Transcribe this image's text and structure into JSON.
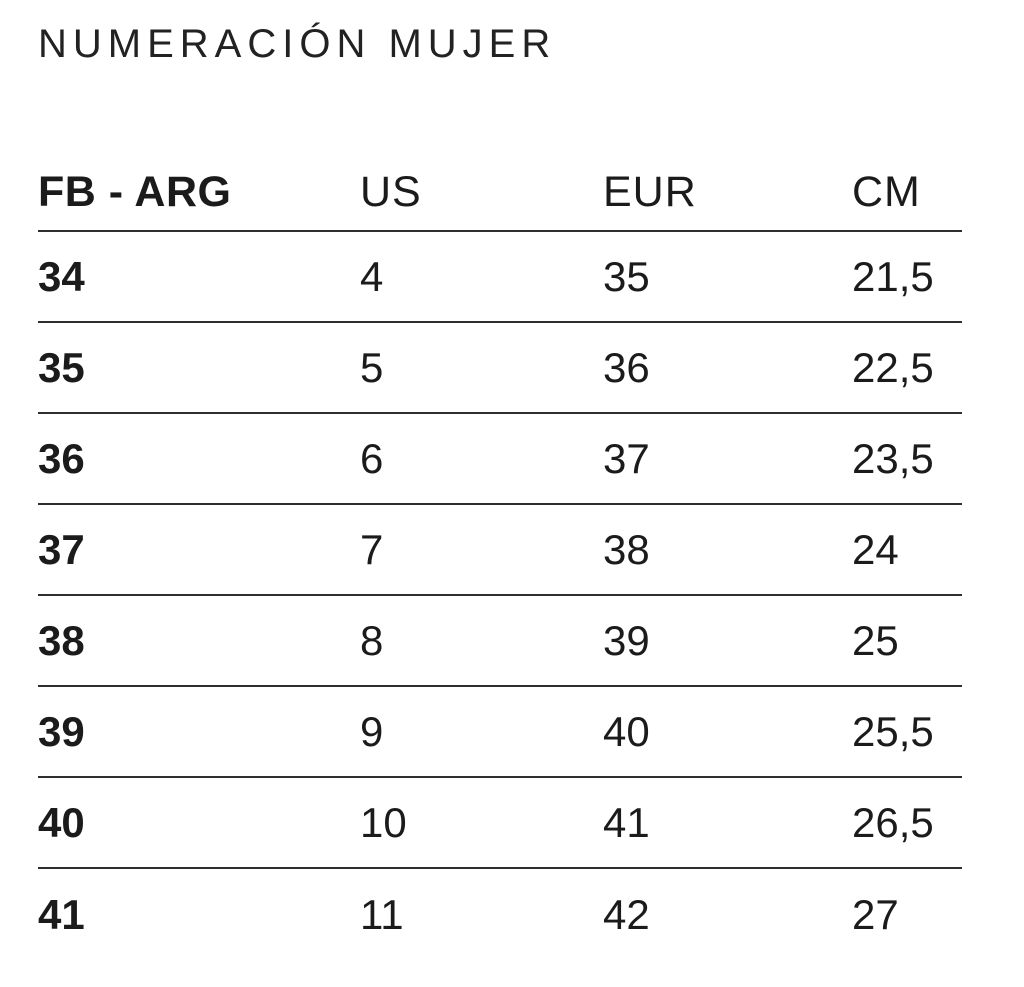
{
  "title": "NUMERACIÓN MUJER",
  "chart_data": {
    "type": "table",
    "title": "NUMERACIÓN MUJER",
    "columns": [
      "FB - ARG",
      "US",
      "EUR",
      "CM"
    ],
    "rows": [
      [
        "34",
        "4",
        "35",
        "21,5"
      ],
      [
        "35",
        "5",
        "36",
        "22,5"
      ],
      [
        "36",
        "6",
        "37",
        "23,5"
      ],
      [
        "37",
        "7",
        "38",
        "24"
      ],
      [
        "38",
        "8",
        "39",
        "25"
      ],
      [
        "39",
        "9",
        "40",
        "25,5"
      ],
      [
        "40",
        "10",
        "41",
        "26,5"
      ],
      [
        "41",
        "11",
        "42",
        "27"
      ]
    ]
  },
  "colors": {
    "background": "#ffffff",
    "text": "#1b1b1b",
    "divider": "#2e2e2e"
  }
}
